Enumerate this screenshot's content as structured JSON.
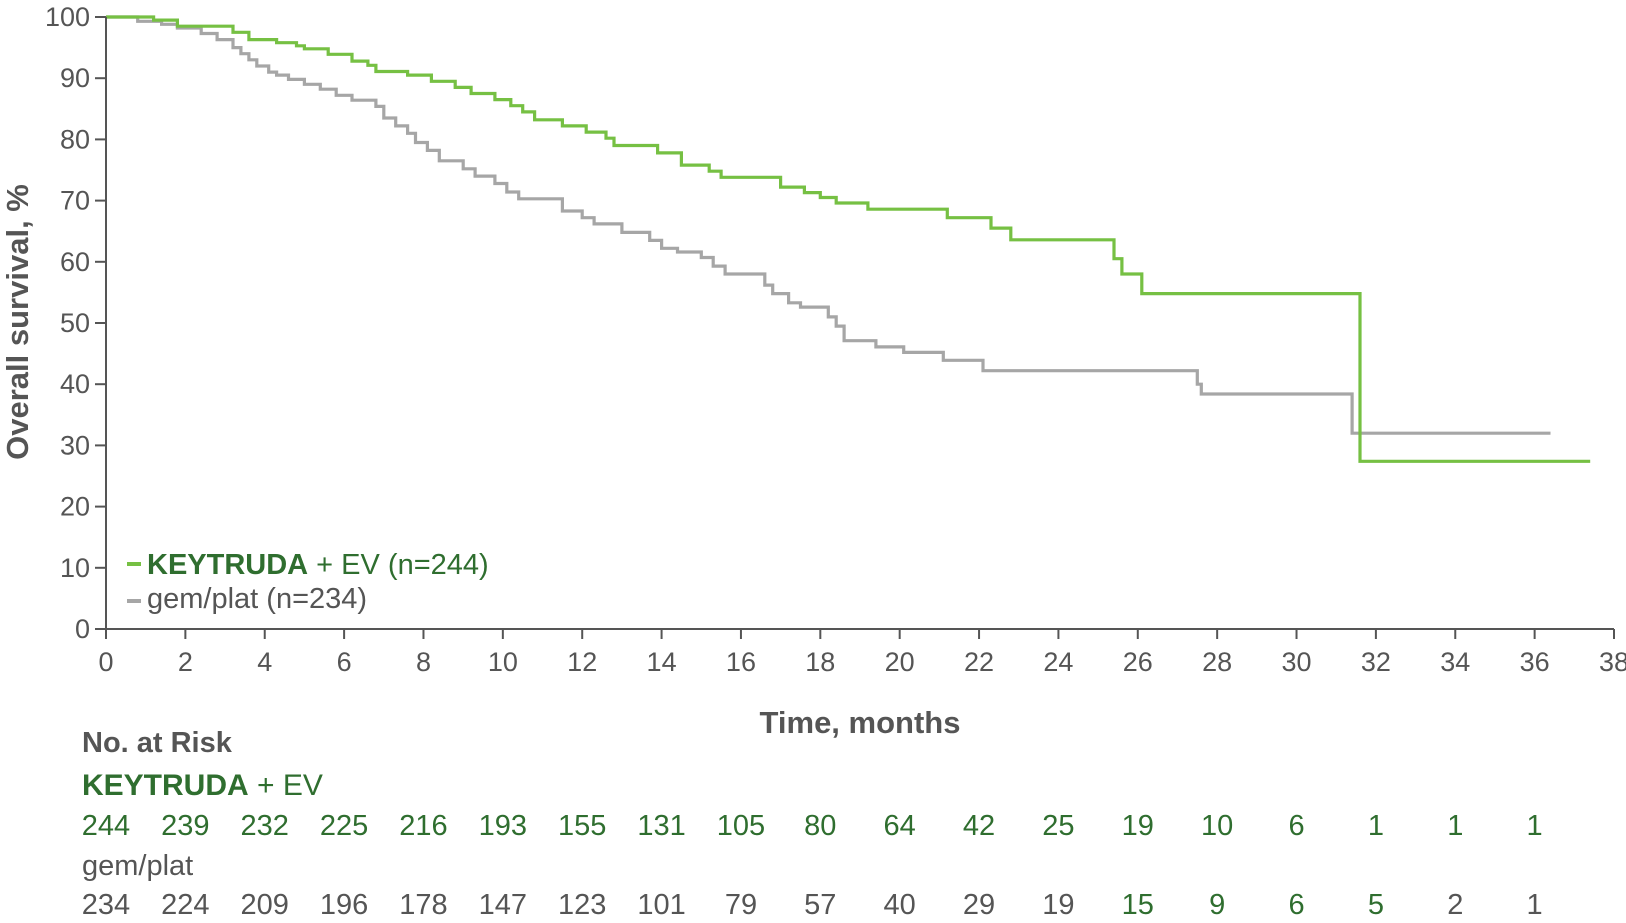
{
  "colors": {
    "keytruda_line": "#76c043",
    "gemplat_line": "#a6a6a6",
    "keytruda_text": "#2f6e2f",
    "gemplat_text": "#555555",
    "axis": "#555555"
  },
  "chart_data": {
    "type": "line",
    "xlabel": "Time, months",
    "ylabel": "Overall survival, %",
    "xlim": [
      0,
      38
    ],
    "ylim": [
      0,
      100
    ],
    "x_ticks": [
      "0",
      "2",
      "4",
      "6",
      "8",
      "10",
      "12",
      "14",
      "16",
      "18",
      "20",
      "22",
      "24",
      "26",
      "28",
      "30",
      "32",
      "34",
      "36",
      "38"
    ],
    "y_ticks": [
      "0",
      "10",
      "20",
      "30",
      "40",
      "50",
      "60",
      "70",
      "80",
      "90",
      "100"
    ],
    "legend_position": "bottom-left",
    "legend": [
      {
        "bold": "KEYTRUDA",
        "rest": " + EV (n=244)"
      },
      {
        "bold": "",
        "rest": "gem/plat (n=234)"
      }
    ],
    "series": [
      {
        "name": "KEYTRUDA + EV (n=244)",
        "step": true,
        "points": [
          [
            0,
            100
          ],
          [
            1.2,
            100
          ],
          [
            1.2,
            99.5
          ],
          [
            1.8,
            99.5
          ],
          [
            1.8,
            98.5
          ],
          [
            3.2,
            98.5
          ],
          [
            3.2,
            97.5
          ],
          [
            3.6,
            97.5
          ],
          [
            3.6,
            96.3
          ],
          [
            4.3,
            96.3
          ],
          [
            4.3,
            95.8
          ],
          [
            4.8,
            95.8
          ],
          [
            4.8,
            95.3
          ],
          [
            5,
            95.3
          ],
          [
            5,
            94.8
          ],
          [
            5.6,
            94.8
          ],
          [
            5.6,
            93.9
          ],
          [
            6.2,
            93.9
          ],
          [
            6.2,
            92.8
          ],
          [
            6.6,
            92.8
          ],
          [
            6.6,
            92.1
          ],
          [
            6.8,
            92.1
          ],
          [
            6.8,
            91.1
          ],
          [
            7.6,
            91.1
          ],
          [
            7.6,
            90.5
          ],
          [
            8.2,
            90.5
          ],
          [
            8.2,
            89.5
          ],
          [
            8.8,
            89.5
          ],
          [
            8.8,
            88.5
          ],
          [
            9.2,
            88.5
          ],
          [
            9.2,
            87.5
          ],
          [
            9.8,
            87.5
          ],
          [
            9.8,
            86.5
          ],
          [
            10.2,
            86.5
          ],
          [
            10.2,
            85.5
          ],
          [
            10.5,
            85.5
          ],
          [
            10.5,
            84.5
          ],
          [
            10.8,
            84.5
          ],
          [
            10.8,
            83.2
          ],
          [
            11.5,
            83.2
          ],
          [
            11.5,
            82.2
          ],
          [
            12.1,
            82.2
          ],
          [
            12.1,
            81.2
          ],
          [
            12.6,
            81.2
          ],
          [
            12.6,
            80.2
          ],
          [
            12.8,
            80.2
          ],
          [
            12.8,
            79
          ],
          [
            13.9,
            79
          ],
          [
            13.9,
            77.8
          ],
          [
            14.5,
            77.8
          ],
          [
            14.5,
            75.8
          ],
          [
            15.2,
            75.8
          ],
          [
            15.2,
            74.8
          ],
          [
            15.5,
            74.8
          ],
          [
            15.5,
            73.8
          ],
          [
            17,
            73.8
          ],
          [
            17,
            72.2
          ],
          [
            17.6,
            72.2
          ],
          [
            17.6,
            71.3
          ],
          [
            18,
            71.3
          ],
          [
            18,
            70.5
          ],
          [
            18.4,
            70.5
          ],
          [
            18.4,
            69.6
          ],
          [
            19.2,
            69.6
          ],
          [
            19.2,
            68.6
          ],
          [
            21.2,
            68.6
          ],
          [
            21.2,
            67.2
          ],
          [
            22.3,
            67.2
          ],
          [
            22.3,
            65.5
          ],
          [
            22.8,
            65.5
          ],
          [
            22.8,
            63.6
          ],
          [
            25.4,
            63.6
          ],
          [
            25.4,
            60.5
          ],
          [
            25.6,
            60.5
          ],
          [
            25.6,
            58
          ],
          [
            26.1,
            58
          ],
          [
            26.1,
            54.8
          ],
          [
            31.6,
            54.8
          ],
          [
            31.6,
            27.4
          ],
          [
            37.4,
            27.4
          ]
        ]
      },
      {
        "name": "gem/plat (n=234)",
        "step": true,
        "points": [
          [
            0,
            100
          ],
          [
            0.8,
            100
          ],
          [
            0.8,
            99.3
          ],
          [
            1.4,
            99.3
          ],
          [
            1.4,
            98.8
          ],
          [
            1.8,
            98.8
          ],
          [
            1.8,
            98.2
          ],
          [
            2.4,
            98.2
          ],
          [
            2.4,
            97.3
          ],
          [
            2.8,
            97.3
          ],
          [
            2.8,
            96.3
          ],
          [
            3.2,
            96.3
          ],
          [
            3.2,
            95
          ],
          [
            3.4,
            95
          ],
          [
            3.4,
            94
          ],
          [
            3.6,
            94
          ],
          [
            3.6,
            93
          ],
          [
            3.8,
            93
          ],
          [
            3.8,
            92
          ],
          [
            4.1,
            92
          ],
          [
            4.1,
            91
          ],
          [
            4.3,
            91
          ],
          [
            4.3,
            90.5
          ],
          [
            4.6,
            90.5
          ],
          [
            4.6,
            89.8
          ],
          [
            5,
            89.8
          ],
          [
            5,
            89
          ],
          [
            5.4,
            89
          ],
          [
            5.4,
            88.2
          ],
          [
            5.8,
            88.2
          ],
          [
            5.8,
            87.2
          ],
          [
            6.2,
            87.2
          ],
          [
            6.2,
            86.4
          ],
          [
            6.8,
            86.4
          ],
          [
            6.8,
            85.4
          ],
          [
            7,
            85.4
          ],
          [
            7,
            83.5
          ],
          [
            7.3,
            83.5
          ],
          [
            7.3,
            82.2
          ],
          [
            7.6,
            82.2
          ],
          [
            7.6,
            81
          ],
          [
            7.8,
            81
          ],
          [
            7.8,
            79.5
          ],
          [
            8.1,
            79.5
          ],
          [
            8.1,
            78.2
          ],
          [
            8.4,
            78.2
          ],
          [
            8.4,
            76.5
          ],
          [
            9,
            76.5
          ],
          [
            9,
            75.2
          ],
          [
            9.3,
            75.2
          ],
          [
            9.3,
            74
          ],
          [
            9.8,
            74
          ],
          [
            9.8,
            72.8
          ],
          [
            10.1,
            72.8
          ],
          [
            10.1,
            71.4
          ],
          [
            10.4,
            71.4
          ],
          [
            10.4,
            70.3
          ],
          [
            11.5,
            70.3
          ],
          [
            11.5,
            68.3
          ],
          [
            12,
            68.3
          ],
          [
            12,
            67.2
          ],
          [
            12.3,
            67.2
          ],
          [
            12.3,
            66.2
          ],
          [
            13,
            66.2
          ],
          [
            13,
            64.8
          ],
          [
            13.7,
            64.8
          ],
          [
            13.7,
            63.5
          ],
          [
            14,
            63.5
          ],
          [
            14,
            62.2
          ],
          [
            14.4,
            62.2
          ],
          [
            14.4,
            61.6
          ],
          [
            15,
            61.6
          ],
          [
            15,
            60.7
          ],
          [
            15.3,
            60.7
          ],
          [
            15.3,
            59.3
          ],
          [
            15.6,
            59.3
          ],
          [
            15.6,
            58
          ],
          [
            16.6,
            58
          ],
          [
            16.6,
            56.2
          ],
          [
            16.8,
            56.2
          ],
          [
            16.8,
            54.8
          ],
          [
            17.2,
            54.8
          ],
          [
            17.2,
            53.3
          ],
          [
            17.5,
            53.3
          ],
          [
            17.5,
            52.6
          ],
          [
            18.2,
            52.6
          ],
          [
            18.2,
            51
          ],
          [
            18.4,
            51
          ],
          [
            18.4,
            49.5
          ],
          [
            18.6,
            49.5
          ],
          [
            18.6,
            47.1
          ],
          [
            19.4,
            47.1
          ],
          [
            19.4,
            46.1
          ],
          [
            20.1,
            46.1
          ],
          [
            20.1,
            45.2
          ],
          [
            21.1,
            45.2
          ],
          [
            21.1,
            43.9
          ],
          [
            22.1,
            43.9
          ],
          [
            22.1,
            42.2
          ],
          [
            27.5,
            42.2
          ],
          [
            27.5,
            40
          ],
          [
            27.6,
            40
          ],
          [
            27.6,
            38.4
          ],
          [
            31.4,
            38.4
          ],
          [
            31.4,
            32
          ],
          [
            36.4,
            32
          ]
        ]
      }
    ]
  },
  "risk_table": {
    "title": "No. at Risk",
    "group1_label_bold": "KEYTRUDA",
    "group1_label_rest": " + EV",
    "group1_values": [
      "244",
      "239",
      "232",
      "225",
      "216",
      "193",
      "155",
      "131",
      "105",
      "80",
      "64",
      "42",
      "25",
      "19",
      "10",
      "6",
      "1",
      "1",
      "1"
    ],
    "group2_label": "gem/plat",
    "group2_values": [
      "234",
      "224",
      "209",
      "196",
      "178",
      "147",
      "123",
      "101",
      "79",
      "57",
      "40",
      "29",
      "19",
      "15",
      "9",
      "6",
      "5",
      "2",
      "1"
    ]
  }
}
